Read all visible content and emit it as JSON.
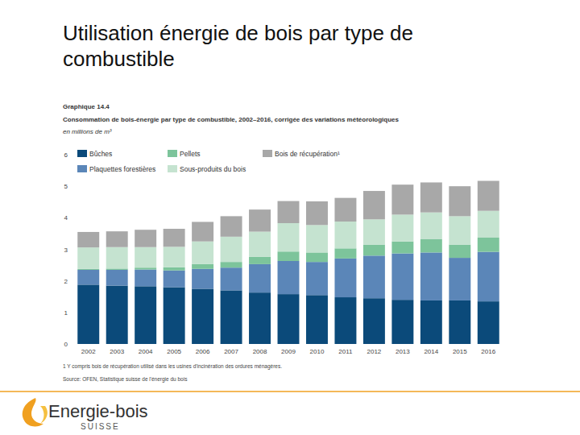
{
  "slide": {
    "title_lines": [
      "Utilisation énergie de bois par type de",
      "combustible"
    ],
    "logo_name": "Energie-bois",
    "logo_country": "SUISSE"
  },
  "chart_data": {
    "type": "bar",
    "stacked": true,
    "label": "Graphique 14.4",
    "title": "Consommation de bois-énergie par type de combustible, 2002–2016, corrigée des variations météorologiques",
    "y_label": "en millions de m³",
    "footnote": "1  Y compris bois de récupération utilisé dans les usines d'incinération des ordures ménagères.",
    "source": "Source: OFEN, Statistique suisse de l'énergie du bois",
    "categories": [
      "2002",
      "2003",
      "2004",
      "2005",
      "2006",
      "2007",
      "2008",
      "2009",
      "2010",
      "2011",
      "2012",
      "2013",
      "2014",
      "2015",
      "2016"
    ],
    "series": [
      {
        "name": "Bûches",
        "color": "#0b4a7a",
        "values": [
          1.88,
          1.85,
          1.83,
          1.8,
          1.75,
          1.7,
          1.63,
          1.58,
          1.55,
          1.48,
          1.45,
          1.4,
          1.38,
          1.38,
          1.35
        ]
      },
      {
        "name": "Plaquettes forestières",
        "color": "#5b86b8",
        "values": [
          0.47,
          0.5,
          0.53,
          0.53,
          0.63,
          0.72,
          0.9,
          1.05,
          1.05,
          1.23,
          1.35,
          1.47,
          1.52,
          1.35,
          1.57
        ]
      },
      {
        "name": "Pellets",
        "color": "#7dc49b",
        "values": [
          0.03,
          0.04,
          0.06,
          0.1,
          0.15,
          0.18,
          0.23,
          0.3,
          0.3,
          0.32,
          0.35,
          0.38,
          0.42,
          0.42,
          0.45
        ]
      },
      {
        "name": "Sous-produits du bois",
        "color": "#c5e3d0",
        "values": [
          0.68,
          0.68,
          0.65,
          0.65,
          0.72,
          0.8,
          0.8,
          0.9,
          0.87,
          0.85,
          0.8,
          0.85,
          0.85,
          0.9,
          0.85
        ]
      },
      {
        "name": "Bois de récupération¹",
        "color": "#a8a8a8",
        "values": [
          0.49,
          0.5,
          0.55,
          0.57,
          0.62,
          0.65,
          0.7,
          0.7,
          0.75,
          0.75,
          0.9,
          0.95,
          0.95,
          0.95,
          0.95
        ]
      }
    ],
    "ylim": [
      0,
      6
    ],
    "yticks": [
      0,
      1,
      2,
      3,
      4,
      5,
      6
    ],
    "grid": false,
    "legend": "top-left"
  }
}
